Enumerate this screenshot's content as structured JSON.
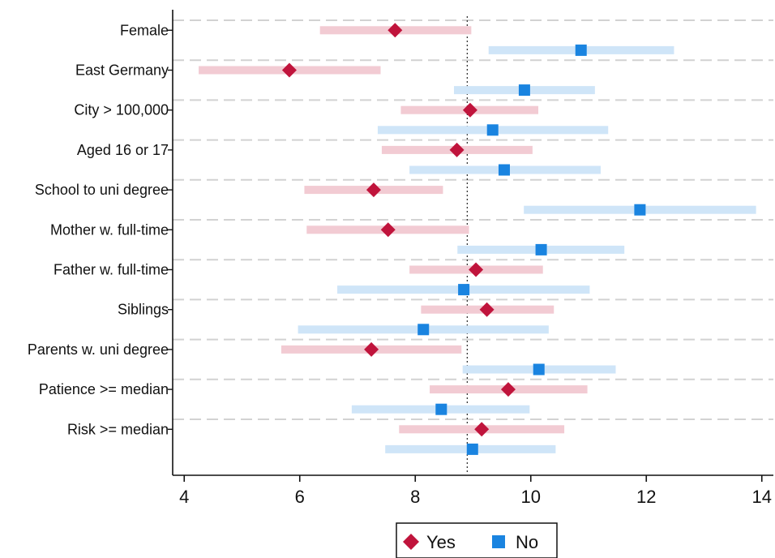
{
  "chart_data": {
    "type": "scatter",
    "subtype": "coefficient plot with confidence intervals",
    "categories": [
      "Female",
      "East Germany",
      "City > 100,000",
      "Aged 16 or 17",
      "School to uni degree",
      "Mother w. full-time",
      "Father w. full-time",
      "Siblings",
      "Parents w. uni degree",
      "Patience >= median",
      "Risk >= median"
    ],
    "series": [
      {
        "name": "Yes",
        "color": "#c0143c",
        "ci_color": "#f2cbd3",
        "marker": "diamond",
        "estimates": [
          7.65,
          5.82,
          8.95,
          8.72,
          7.28,
          7.53,
          9.05,
          9.24,
          7.24,
          9.61,
          9.15
        ],
        "ci_low": [
          6.35,
          4.25,
          7.75,
          7.42,
          6.08,
          6.12,
          7.9,
          8.1,
          5.68,
          8.25,
          7.72
        ],
        "ci_high": [
          8.97,
          7.4,
          10.13,
          10.03,
          8.48,
          8.93,
          10.21,
          10.4,
          8.8,
          10.98,
          10.58
        ]
      },
      {
        "name": "No",
        "color": "#1a84e0",
        "ci_color": "#cfe5f8",
        "marker": "square",
        "estimates": [
          10.87,
          9.89,
          9.34,
          9.54,
          11.89,
          10.18,
          8.84,
          8.14,
          10.14,
          8.45,
          8.99
        ],
        "ci_low": [
          9.27,
          8.67,
          7.35,
          7.9,
          9.88,
          8.73,
          6.65,
          5.97,
          8.82,
          6.9,
          7.48
        ],
        "ci_high": [
          12.48,
          11.11,
          11.34,
          11.21,
          13.9,
          11.62,
          11.02,
          10.31,
          11.47,
          9.98,
          10.43
        ]
      }
    ],
    "reference_line": 8.9,
    "xlim": [
      3.8,
      14.2
    ],
    "xticks": [
      4,
      6,
      8,
      10,
      12,
      14
    ],
    "grid": "horizontal dashed",
    "legend": {
      "position": "bottom",
      "entries": [
        "Yes",
        "No"
      ]
    },
    "title": "",
    "xlabel": "",
    "ylabel": ""
  }
}
